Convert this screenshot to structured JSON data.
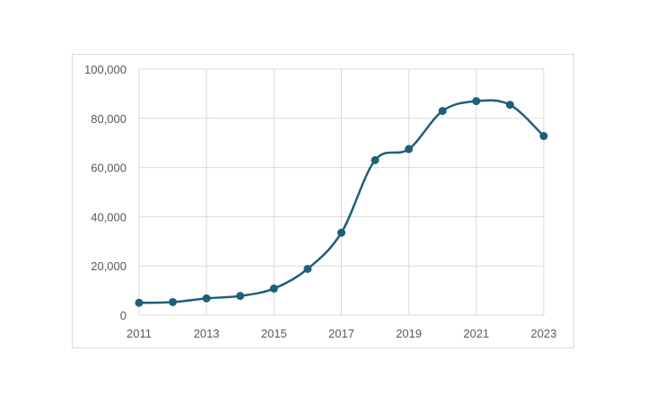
{
  "chart_data": {
    "type": "line",
    "title": "",
    "xlabel": "",
    "ylabel": "",
    "x": [
      2011,
      2012,
      2013,
      2014,
      2015,
      2016,
      2017,
      2018,
      2019,
      2020,
      2021,
      2022,
      2023
    ],
    "series": [
      {
        "values": [
          5000,
          5300,
          6800,
          7800,
          10800,
          18800,
          33500,
          63000,
          67500,
          83000,
          87000,
          85500,
          72800
        ]
      }
    ],
    "xlim": [
      2011,
      2023
    ],
    "ylim": [
      0,
      100000
    ],
    "x_ticks": [
      2011,
      2013,
      2015,
      2017,
      2019,
      2021,
      2023
    ],
    "x_tick_labels": [
      "2011",
      "2013",
      "2015",
      "2017",
      "2019",
      "2021",
      "2023"
    ],
    "y_ticks": [
      0,
      20000,
      40000,
      60000,
      80000,
      100000
    ],
    "y_tick_labels": [
      "0",
      "20,000",
      "40,000",
      "60,000",
      "80,000",
      "100,000"
    ],
    "grid": true,
    "legend": "none",
    "smooth": true,
    "colors": {
      "series": "#1f5f7a",
      "grid": "#d9d9d9",
      "text": "#595959"
    }
  }
}
